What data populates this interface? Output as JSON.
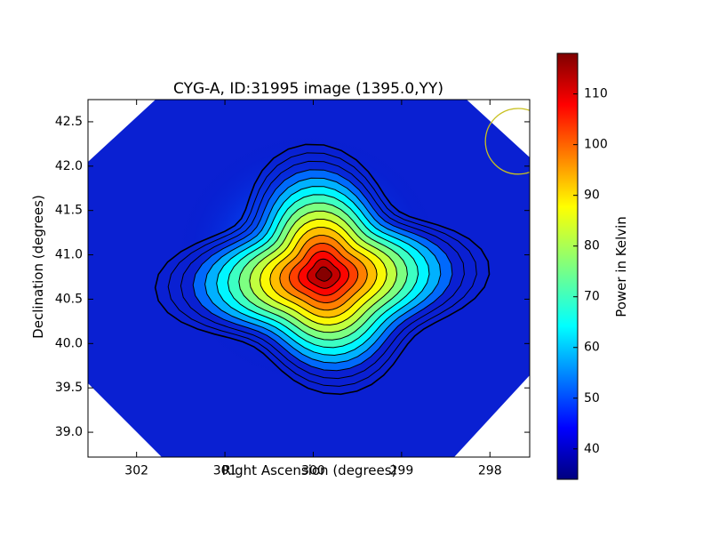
{
  "chart_data": {
    "type": "heatmap",
    "title": "CYG-A, ID:31995 image (1395.0,YY)",
    "xlabel": "Right Ascension (degrees)",
    "ylabel": "Declination (degrees)",
    "xlim": [
      302.55,
      297.55
    ],
    "ylim": [
      38.72,
      42.75
    ],
    "x_ticks": [
      "302",
      "301",
      "300",
      "299",
      "298"
    ],
    "x_tick_values": [
      302,
      301,
      300,
      299,
      298
    ],
    "y_ticks": [
      "39.0",
      "39.5",
      "40.0",
      "40.5",
      "41.0",
      "41.5",
      "42.0",
      "42.5"
    ],
    "y_tick_values": [
      39.0,
      39.5,
      40.0,
      40.5,
      41.0,
      41.5,
      42.0,
      42.5
    ],
    "peak": {
      "ra": 299.88,
      "dec": 40.78,
      "value": 118
    },
    "background_value": 34,
    "colormap": "jet",
    "contour_count": 16,
    "beam_circle": {
      "ra": 297.68,
      "dec": 42.28,
      "radius_deg": 0.37,
      "color": "#c8c020"
    },
    "colorbar": {
      "label": "Power in Kelvin",
      "min": 34,
      "max": 118,
      "ticks": [
        "40",
        "50",
        "60",
        "70",
        "80",
        "90",
        "100",
        "110"
      ],
      "tick_values": [
        40,
        50,
        60,
        70,
        80,
        90,
        100,
        110
      ]
    }
  }
}
